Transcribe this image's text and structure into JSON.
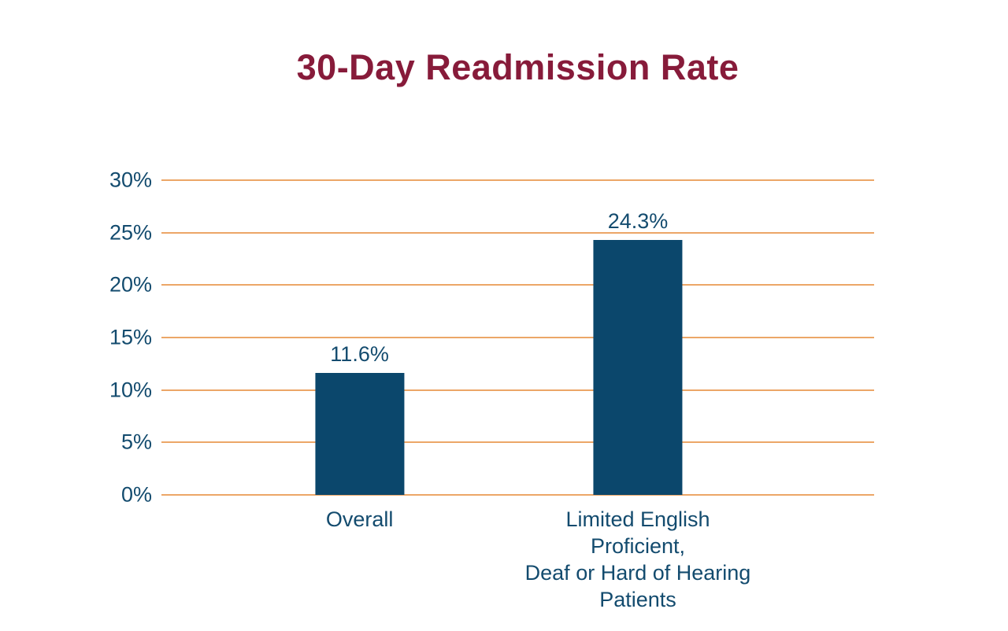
{
  "title": "30-Day Readmission Rate",
  "colors": {
    "background": "#ffffff",
    "title": "#871b3a",
    "bar": "#0b476c",
    "axis_text": "#134b6e",
    "gridline": "#eca667"
  },
  "chart_data": {
    "type": "bar",
    "title": "30-Day Readmission Rate",
    "categories": [
      "Overall",
      "Limited English\nProficient,\nDeaf or Hard of Hearing\nPatients"
    ],
    "values": [
      11.6,
      24.3
    ],
    "value_labels": [
      "11.6%",
      "24.3%"
    ],
    "yticks": [
      0,
      5,
      10,
      15,
      20,
      25,
      30
    ],
    "ytick_labels": [
      "0%",
      "5%",
      "10%",
      "15%",
      "20%",
      "25%",
      "30%"
    ],
    "ylim": [
      0,
      30
    ],
    "xlabel": "",
    "ylabel": "",
    "grid": "horizontal",
    "legend": "none"
  }
}
